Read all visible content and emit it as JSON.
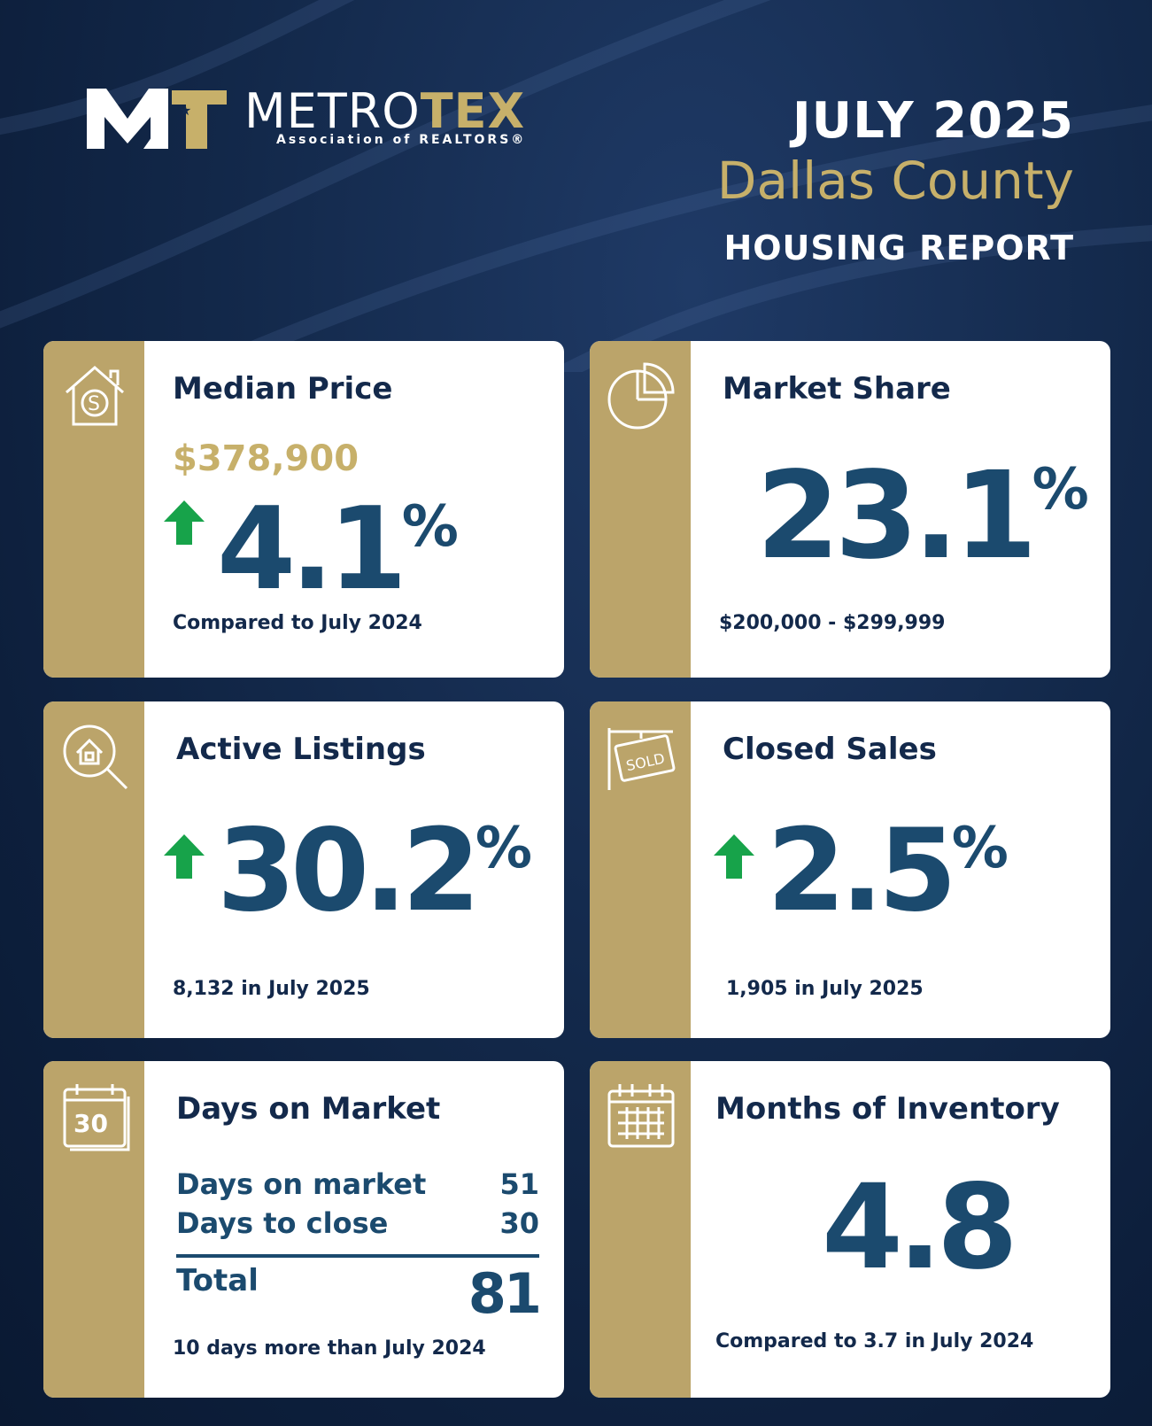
{
  "header": {
    "logo_name": "METRO",
    "logo_accent": "TEX",
    "logo_sub": "Association of REALTORS®",
    "month": "JULY 2025",
    "county": "Dallas County",
    "report": "HOUSING REPORT"
  },
  "cards": {
    "median": {
      "title": "Median Price",
      "price": "$378,900",
      "value": "4.1",
      "pct": "%",
      "trend": "up",
      "caption": "Compared to July 2024",
      "icon": "house-dollar-icon"
    },
    "share": {
      "title": "Market Share",
      "value": "23.1",
      "pct": "%",
      "caption": "$200,000 - $299,999",
      "icon": "pie-chart-icon"
    },
    "active": {
      "title": "Active Listings",
      "value": "30.2",
      "pct": "%",
      "trend": "up",
      "caption": "8,132 in July 2025",
      "icon": "house-search-icon"
    },
    "closed": {
      "title": "Closed Sales",
      "value": "2.5",
      "pct": "%",
      "trend": "up",
      "caption": "1,905 in July 2025",
      "icon": "sold-sign-icon"
    },
    "dom": {
      "title": "Days on Market",
      "row1_label": "Days on market",
      "row1_value": "51",
      "row2_label": "Days to close",
      "row2_value": "30",
      "total_label": "Total",
      "total_value": "81",
      "caption": "10 days more than July 2024",
      "icon": "calendar-30-icon"
    },
    "inventory": {
      "title": "Months of Inventory",
      "value": "4.8",
      "caption": "Compared to 3.7 in July 2024",
      "icon": "calendar-grid-icon"
    }
  },
  "colors": {
    "navy": "#13294b",
    "gold": "#bba46a",
    "stat_blue": "#1b4a6e",
    "arrow_green": "#17a34a"
  }
}
